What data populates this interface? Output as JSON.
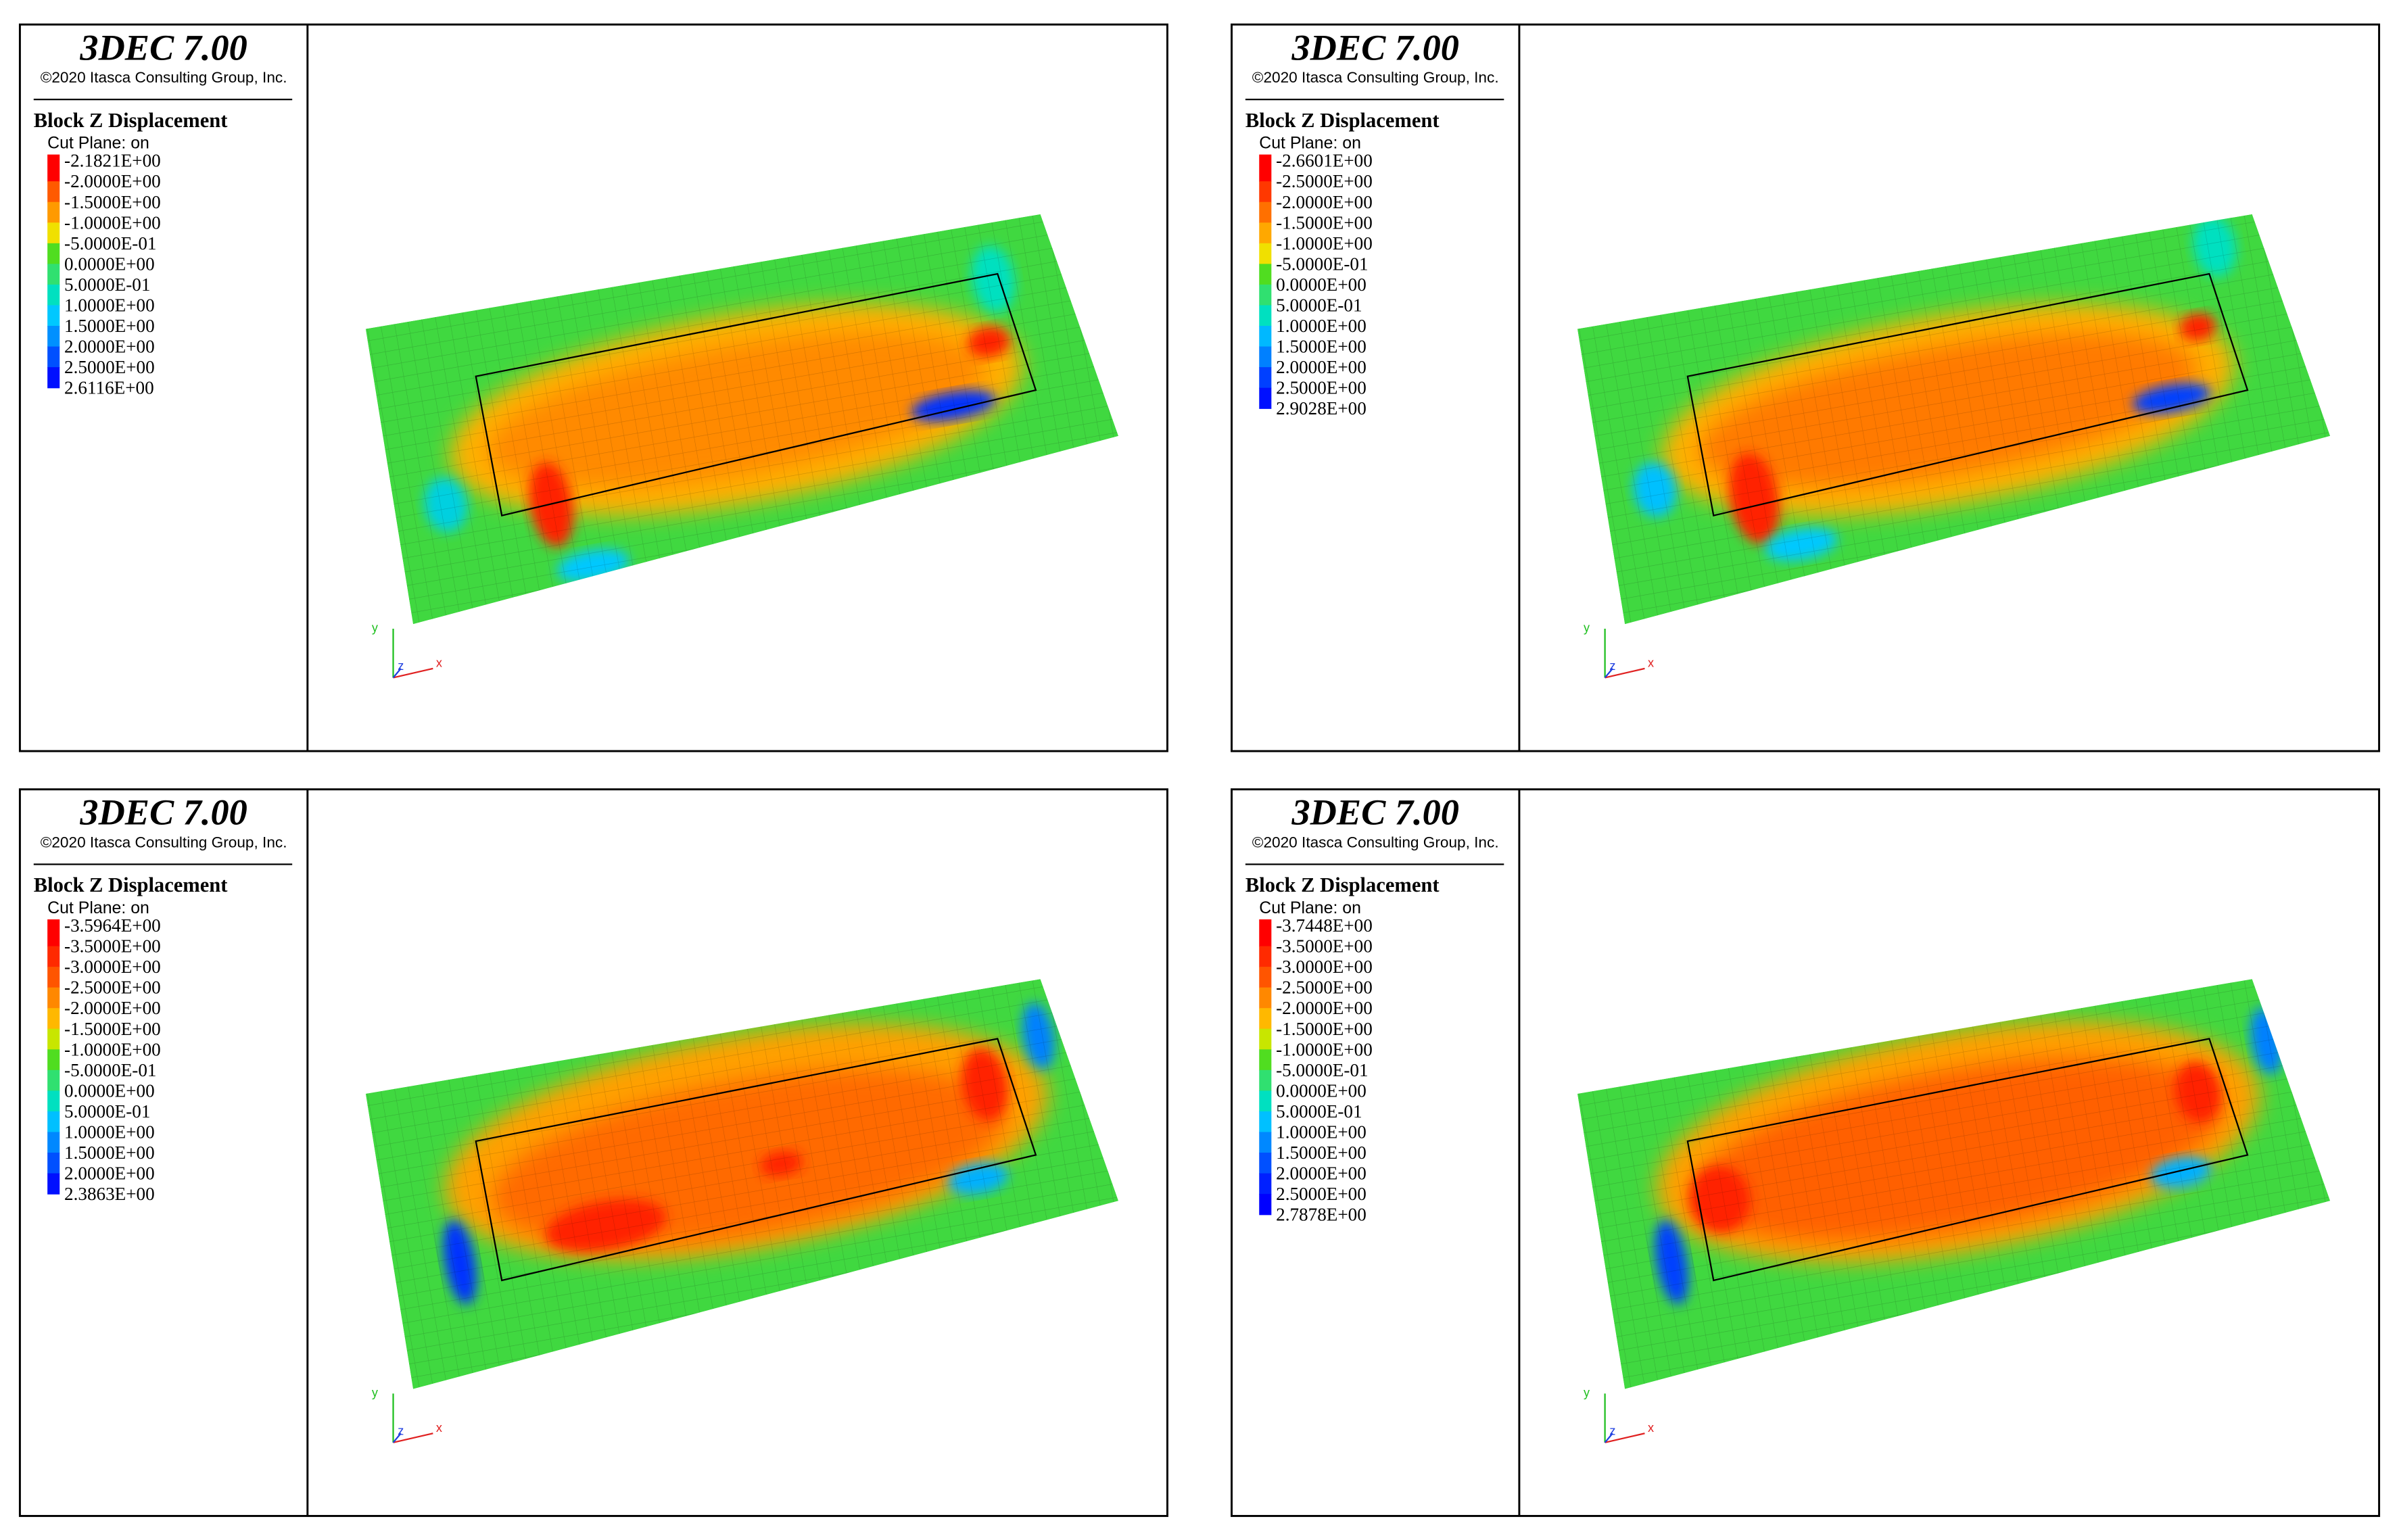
{
  "panels": [
    {
      "title": "3DEC 7.00",
      "copyright": "©2020 Itasca Consulting Group, Inc.",
      "legend": {
        "title": "Block Z Displacement",
        "subtitle": "Cut Plane: on",
        "labels": [
          "-2.1821E+00",
          "-2.0000E+00",
          "-1.5000E+00",
          "-1.0000E+00",
          "-5.0000E-01",
          "0.0000E+00",
          "5.0000E-01",
          "1.0000E+00",
          "1.5000E+00",
          "2.0000E+00",
          "2.5000E+00",
          "2.6116E+00"
        ],
        "colors": [
          "#ff0000",
          "#ff5a00",
          "#ff9a00",
          "#f0e000",
          "#50dd20",
          "#30e070",
          "#00e0c0",
          "#00c8ff",
          "#0090ff",
          "#0050ff",
          "#0010ff"
        ]
      },
      "axes": {
        "y": "y",
        "z": "z",
        "x": "x"
      }
    },
    {
      "title": "3DEC 7.00",
      "copyright": "©2020 Itasca Consulting Group, Inc.",
      "legend": {
        "title": "Block Z Displacement",
        "subtitle": "Cut Plane: on",
        "labels": [
          "-2.6601E+00",
          "-2.5000E+00",
          "-2.0000E+00",
          "-1.5000E+00",
          "-1.0000E+00",
          "-5.0000E-01",
          "0.0000E+00",
          "5.0000E-01",
          "1.0000E+00",
          "1.5000E+00",
          "2.0000E+00",
          "2.5000E+00",
          "2.9028E+00"
        ],
        "colors": [
          "#ff0000",
          "#ff3800",
          "#ff7000",
          "#ffa800",
          "#f0e000",
          "#50dd20",
          "#30e070",
          "#00e0c0",
          "#00b8ff",
          "#0080ff",
          "#0040ff",
          "#0010ff"
        ]
      },
      "axes": {
        "y": "y",
        "z": "z",
        "x": "x"
      }
    },
    {
      "title": "3DEC 7.00",
      "copyright": "©2020 Itasca Consulting Group, Inc.",
      "legend": {
        "title": "Block Z Displacement",
        "subtitle": "Cut Plane: on",
        "labels": [
          "-3.5964E+00",
          "-3.5000E+00",
          "-3.0000E+00",
          "-2.5000E+00",
          "-2.0000E+00",
          "-1.5000E+00",
          "-1.0000E+00",
          "-5.0000E-01",
          "0.0000E+00",
          "5.0000E-01",
          "1.0000E+00",
          "1.5000E+00",
          "2.0000E+00",
          "2.3863E+00"
        ],
        "colors": [
          "#ff0000",
          "#ff2a00",
          "#ff5500",
          "#ff8800",
          "#ffb800",
          "#c8e600",
          "#50dd20",
          "#30e070",
          "#00e0c0",
          "#00c0ff",
          "#0088ff",
          "#0050ff",
          "#0010ff"
        ]
      },
      "axes": {
        "y": "y",
        "z": "z",
        "x": "x"
      }
    },
    {
      "title": "3DEC 7.00",
      "copyright": "©2020 Itasca Consulting Group, Inc.",
      "legend": {
        "title": "Block Z Displacement",
        "subtitle": "Cut Plane: on",
        "labels": [
          "-3.7448E+00",
          "-3.5000E+00",
          "-3.0000E+00",
          "-2.5000E+00",
          "-2.0000E+00",
          "-1.5000E+00",
          "-1.0000E+00",
          "-5.0000E-01",
          "0.0000E+00",
          "5.0000E-01",
          "1.0000E+00",
          "1.5000E+00",
          "2.0000E+00",
          "2.5000E+00",
          "2.7878E+00"
        ],
        "colors": [
          "#ff0000",
          "#ff2a00",
          "#ff5500",
          "#ff8800",
          "#ffb800",
          "#c8e600",
          "#50dd20",
          "#30e070",
          "#00e0c0",
          "#00c0ff",
          "#0088ff",
          "#0050ff",
          "#0020ff",
          "#0000ff"
        ]
      },
      "axes": {
        "y": "y",
        "z": "z",
        "x": "x"
      }
    }
  ]
}
